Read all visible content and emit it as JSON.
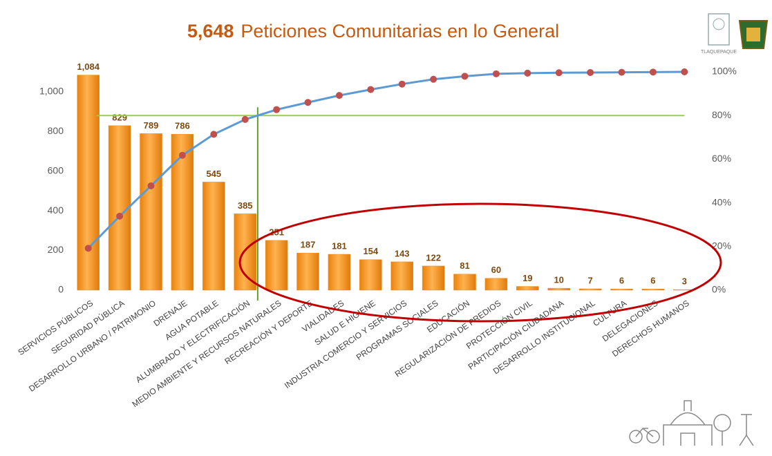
{
  "chart_data": {
    "type": "pareto",
    "title_number": "5,648",
    "title": "Peticiones Comunitarias en lo General",
    "logo_text": "TLAQUEPAQUE",
    "categories": [
      "SERVICIOS PÚBLICOS",
      "SEGURIDAD PÚBLICA",
      "DESARROLLO URBANO / PATRIMONIO",
      "DRENAJE",
      "AGUA POTABLE",
      "ALUMBRADO Y ELECTRIFICACIÓN",
      "MEDIO AMBIENTE Y RECURSOS NATURALES",
      "RECREACIÓN Y DEPORTE",
      "VIALIDADES",
      "SALUD E HIGIENE",
      "INDUSTRIA COMERCIO Y SERVICIOS",
      "PROGRAMAS SOCIALES",
      "EDUCACIÓN",
      "REGULARIZACIÓN DE PREDIOS",
      "PROTECCIÓN CIVIL",
      "PARTICIPACIÓN CIUDADANA",
      "DESARROLLO INSTITUCIONAL",
      "CULTURA",
      "DELEGACIONES",
      "DERECHOS HUMANOS"
    ],
    "values": [
      1084,
      829,
      789,
      786,
      545,
      385,
      251,
      187,
      181,
      154,
      143,
      122,
      81,
      60,
      19,
      10,
      7,
      6,
      6,
      3
    ],
    "value_labels": [
      "1,084",
      "829",
      "789",
      "786",
      "545",
      "385",
      "251",
      "187",
      "181",
      "154",
      "143",
      "122",
      "81",
      "60",
      "19",
      "10",
      "7",
      "6",
      "6",
      "3"
    ],
    "color": "#f0901e",
    "cumulative": {
      "axis": "y2",
      "color": "#5b9bd5",
      "marker_color": "#c0504d",
      "values": [
        19.2,
        33.9,
        47.8,
        61.8,
        71.4,
        78.2,
        82.7,
        86.0,
        89.2,
        91.9,
        94.4,
        96.6,
        98.0,
        99.1,
        99.4,
        99.6,
        99.7,
        99.8,
        99.9,
        100
      ]
    },
    "ylim": [
      0,
      1100
    ],
    "yticks": [
      0,
      200,
      400,
      600,
      800,
      {
        "value": 1000,
        "label": "1,000"
      }
    ],
    "y2lim": [
      0,
      100
    ],
    "y2ticks": [
      {
        "value": 0,
        "label": "0%"
      },
      {
        "value": 20,
        "label": "20%"
      },
      {
        "value": 40,
        "label": "40%"
      },
      {
        "value": 60,
        "label": "60%"
      },
      {
        "value": 80,
        "label": "80%"
      },
      {
        "value": 100,
        "label": "100%"
      }
    ],
    "reference_line": {
      "axis": "y2",
      "value": 80,
      "color": "#92d050"
    }
  }
}
